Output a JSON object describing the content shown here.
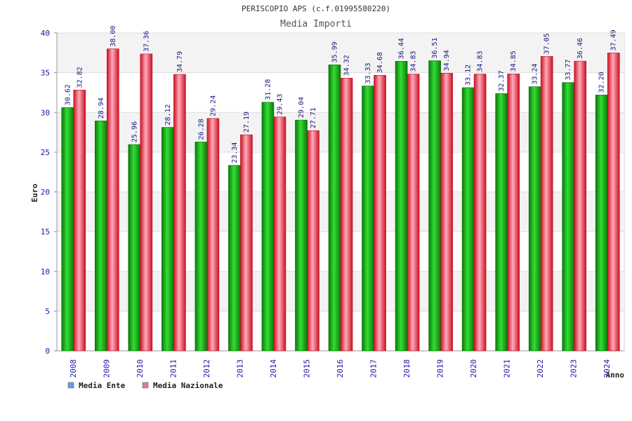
{
  "chart_data": {
    "type": "bar",
    "title": "PERISCOPIO APS (c.f.01995580220)",
    "subtitle": "Media Importi",
    "xlabel": "Anno",
    "ylabel": "Euro",
    "ylim": [
      0,
      40
    ],
    "yticks": [
      0,
      5,
      10,
      15,
      20,
      25,
      30,
      35,
      40
    ],
    "grid": true,
    "legend_position": "bottom-left",
    "categories": [
      "2008",
      "2009",
      "2010",
      "2011",
      "2012",
      "2013",
      "2014",
      "2015",
      "2016",
      "2017",
      "2018",
      "2019",
      "2020",
      "2021",
      "2022",
      "2023",
      "2024"
    ],
    "series": [
      {
        "name": "Media Ente",
        "color": "#22bb22",
        "legend_color": "#6699ee",
        "values": [
          30.62,
          28.94,
          25.96,
          28.12,
          26.28,
          23.34,
          31.28,
          29.04,
          35.99,
          33.33,
          36.44,
          36.51,
          33.12,
          32.37,
          33.24,
          33.77,
          32.2
        ],
        "labels": [
          "30.62",
          "28.94",
          "25.96",
          "28.12",
          "26.28",
          "23.34",
          "31.28",
          "29.04",
          "35.99",
          "33.33",
          "36.44",
          "36.51",
          "33.12",
          "32.37",
          "33.24",
          "33.77",
          "32.20"
        ]
      },
      {
        "name": "Media Nazionale",
        "color": "#ee3344",
        "legend_color": "#dd77aa",
        "values": [
          32.82,
          38.0,
          37.36,
          34.79,
          29.24,
          27.19,
          29.43,
          27.71,
          34.32,
          34.68,
          34.83,
          34.94,
          34.83,
          34.85,
          37.05,
          36.46,
          37.49
        ],
        "labels": [
          "32.82",
          "38.00",
          "37.36",
          "34.79",
          "29.24",
          "27.19",
          "29.43",
          "27.71",
          "34.32",
          "34.68",
          "34.83",
          "34.94",
          "34.83",
          "34.85",
          "37.05",
          "36.46",
          "37.49"
        ]
      }
    ]
  }
}
